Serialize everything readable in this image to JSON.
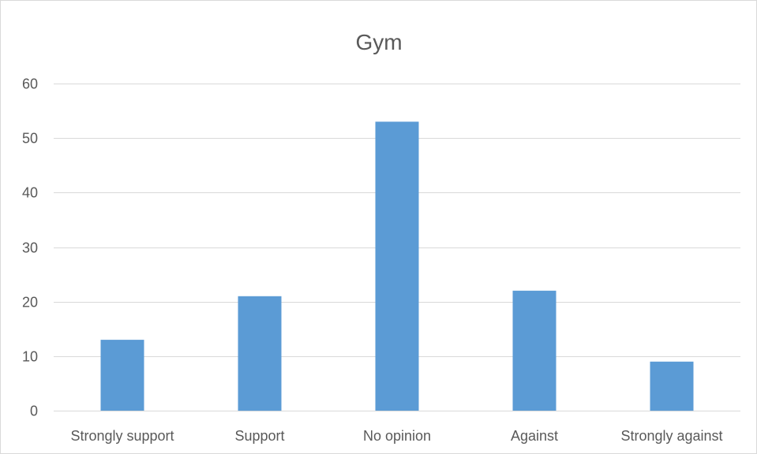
{
  "chart_data": {
    "type": "bar",
    "title": "Gym",
    "categories": [
      "Strongly support",
      "Support",
      "No opinion",
      "Against",
      "Strongly against"
    ],
    "values": [
      13,
      21,
      53,
      22,
      9
    ],
    "ylim": [
      0,
      60
    ],
    "yticks": [
      0,
      10,
      20,
      30,
      40,
      50,
      60
    ],
    "grid": true,
    "legend": "none",
    "bar_color": "#5b9bd5"
  }
}
